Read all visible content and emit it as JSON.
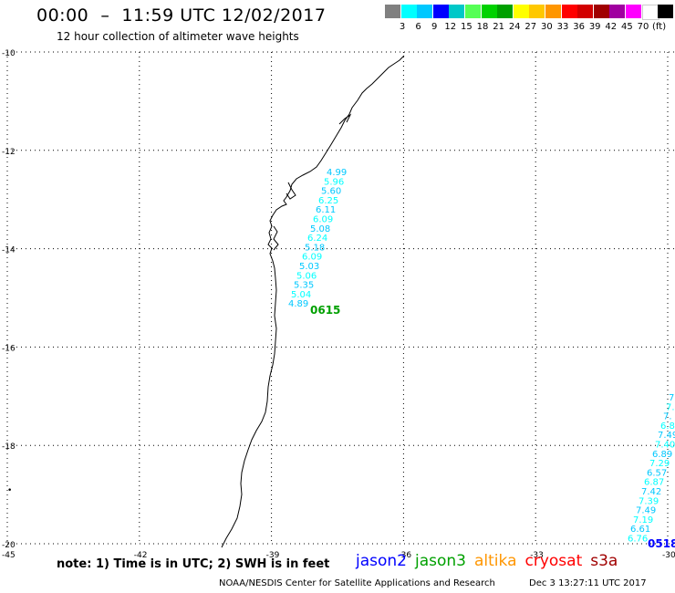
{
  "header": {
    "title": "00:00  –  11:59 UTC 12/02/2017",
    "subtitle": "12 hour collection of altimeter wave heights"
  },
  "legend": {
    "colors": [
      "#808080",
      "#00ffff",
      "#00c8ff",
      "#0000ff",
      "#00c8c8",
      "#55ff55",
      "#00d200",
      "#00a000",
      "#ffff00",
      "#ffc800",
      "#ff9600",
      "#ff0000",
      "#d20000",
      "#a00000",
      "#a000a0",
      "#ff00ff",
      "#ffffff",
      "#000000"
    ],
    "labels": [
      "3",
      "6",
      "9",
      "12",
      "15",
      "18",
      "21",
      "24",
      "27",
      "30",
      "33",
      "36",
      "39",
      "42",
      "45",
      "70",
      "(ft)"
    ]
  },
  "map": {
    "lon_range": [
      -45,
      -30
    ],
    "lat_range": [
      -20,
      -10
    ],
    "lat_ticks": [
      "-10",
      "-12",
      "-14",
      "-16",
      "-18",
      "-20"
    ],
    "lon_ticks": [
      "-45",
      "-42",
      "-39",
      "-36",
      "-33",
      "-30"
    ],
    "tracks": [
      {
        "name": "jason3",
        "label": "0615",
        "label_color": "#00a000",
        "points": [
          {
            "v": "4.99",
            "color": "#00c8ff"
          },
          {
            "v": "5.96",
            "color": "#00ffff"
          },
          {
            "v": "5.60",
            "color": "#00c8ff"
          },
          {
            "v": "6.25",
            "color": "#00ffff"
          },
          {
            "v": "6.11",
            "color": "#00c8ff"
          },
          {
            "v": "6.09",
            "color": "#00ffff"
          },
          {
            "v": "5.08",
            "color": "#00c8ff"
          },
          {
            "v": "6.24",
            "color": "#00ffff"
          },
          {
            "v": "5.18",
            "color": "#00c8ff"
          },
          {
            "v": "6.09",
            "color": "#00ffff"
          },
          {
            "v": "5.03",
            "color": "#00c8ff"
          },
          {
            "v": "5.06",
            "color": "#00ffff"
          },
          {
            "v": "5.35",
            "color": "#00c8ff"
          },
          {
            "v": "5.04",
            "color": "#00ffff"
          },
          {
            "v": "4.89",
            "color": "#00c8ff"
          }
        ]
      },
      {
        "name": "jason2",
        "label": "0518",
        "label_color": "#0000ff",
        "points": [
          {
            "v": "7",
            "color": "#00c8ff"
          },
          {
            "v": "7.",
            "color": "#00ffff"
          },
          {
            "v": "7.",
            "color": "#00c8ff"
          },
          {
            "v": "6.8",
            "color": "#00ffff"
          },
          {
            "v": "7.49",
            "color": "#00c8ff"
          },
          {
            "v": "7.40",
            "color": "#00ffff"
          },
          {
            "v": "6.89",
            "color": "#00c8ff"
          },
          {
            "v": "7.29",
            "color": "#00ffff"
          },
          {
            "v": "6.57",
            "color": "#00c8ff"
          },
          {
            "v": "6.87",
            "color": "#00ffff"
          },
          {
            "v": "7.42",
            "color": "#00c8ff"
          },
          {
            "v": "7.39",
            "color": "#00ffff"
          },
          {
            "v": "7.49",
            "color": "#00c8ff"
          },
          {
            "v": "7.19",
            "color": "#00ffff"
          },
          {
            "v": "6.61",
            "color": "#00c8ff"
          },
          {
            "v": "6.76",
            "color": "#00ffff"
          }
        ]
      }
    ]
  },
  "footer": {
    "note": "note: 1) Time is in UTC; 2) SWH is in feet",
    "satellites": [
      {
        "name": "jason2",
        "color": "#0000ff"
      },
      {
        "name": "jason3",
        "color": "#00a000"
      },
      {
        "name": "altika",
        "color": "#ff9600"
      },
      {
        "name": "cryosat",
        "color": "#ff0000"
      },
      {
        "name": "s3a",
        "color": "#a00000"
      }
    ],
    "credit": "NOAA/NESDIS Center for Satellite Applications and Research",
    "timestamp": "Dec  3 13:27:11 UTC 2017"
  }
}
